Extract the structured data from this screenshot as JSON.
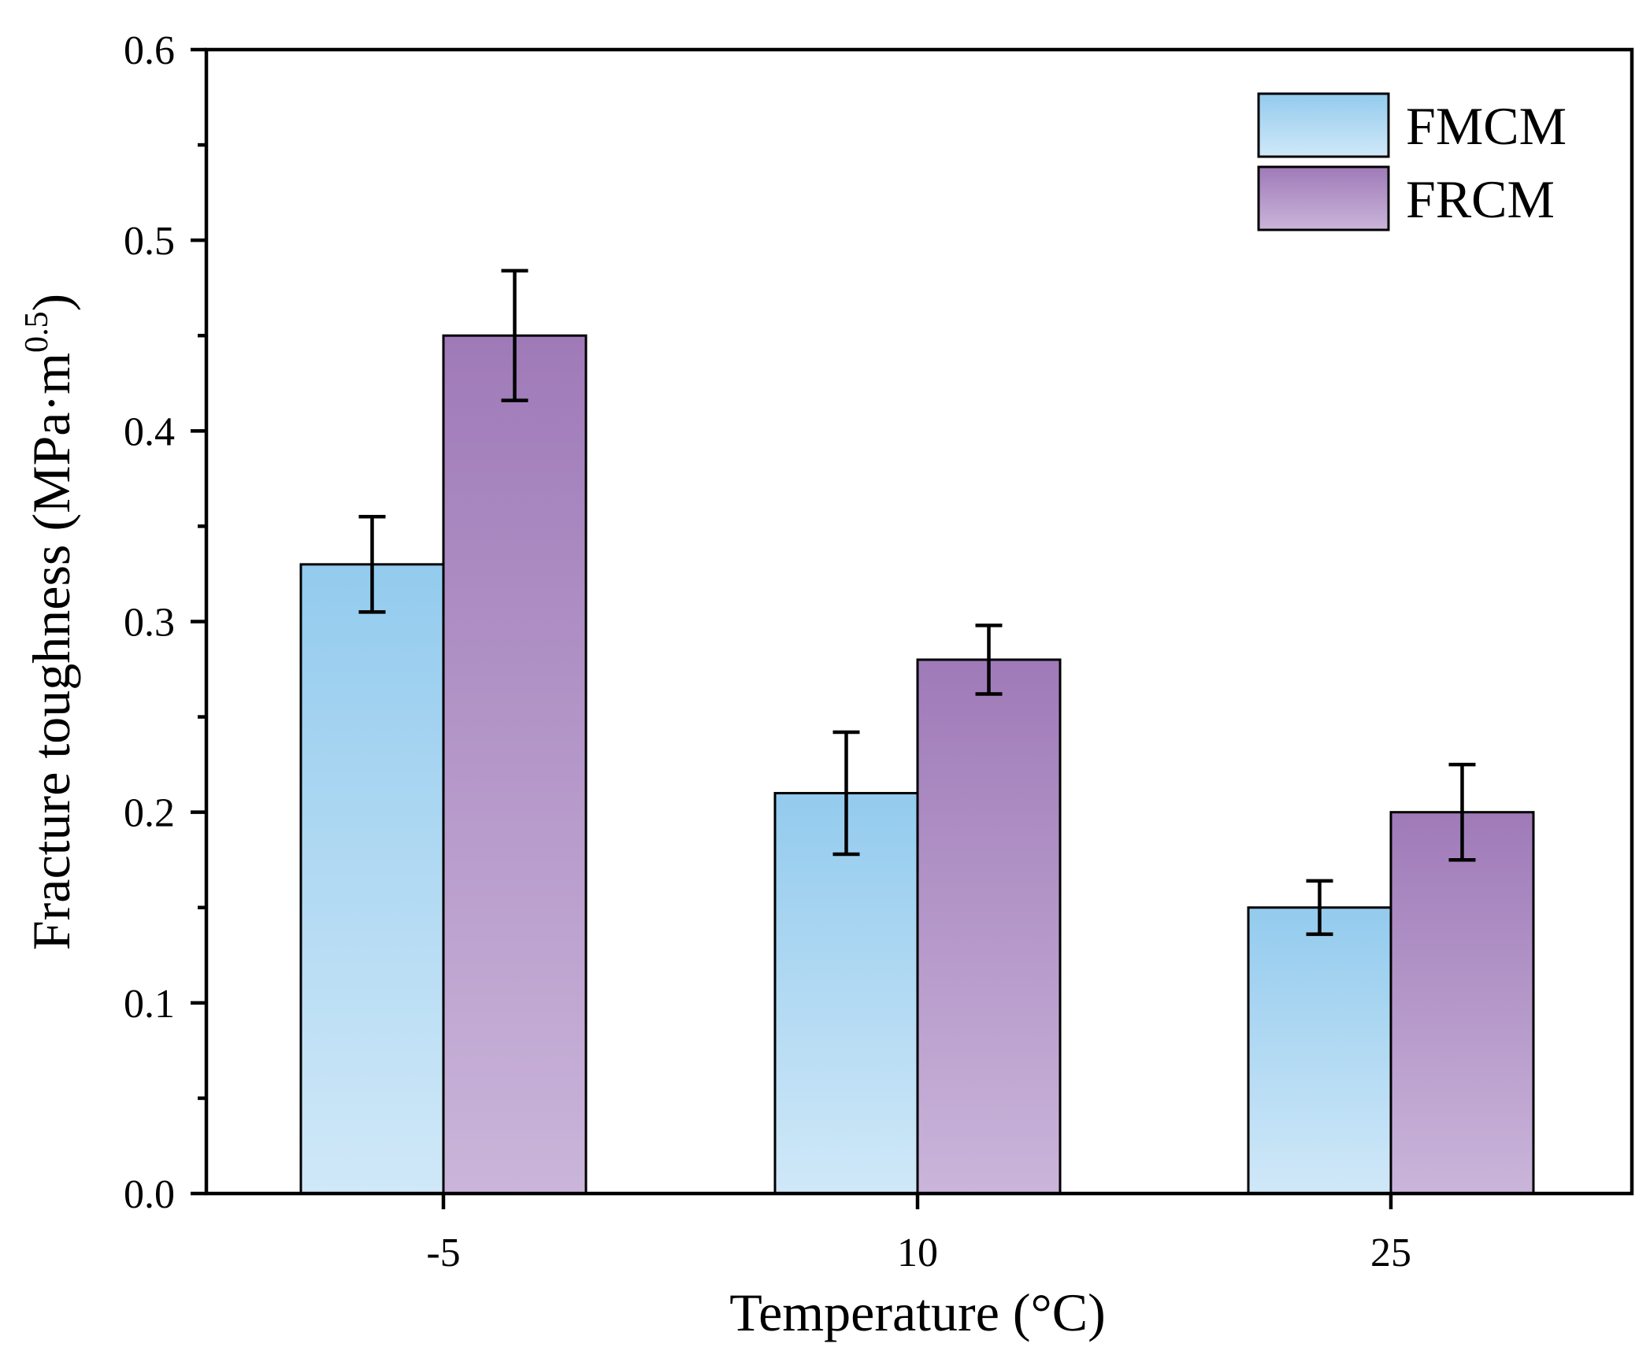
{
  "chart_data": {
    "type": "bar",
    "categories": [
      "-5",
      "10",
      "25"
    ],
    "series": [
      {
        "name": "FMCM",
        "values": [
          0.33,
          0.21,
          0.15
        ],
        "errors": [
          0.025,
          0.032,
          0.014
        ],
        "color_top": "#93cbee",
        "color_bottom": "#d0e8f8"
      },
      {
        "name": "FRCM",
        "values": [
          0.45,
          0.28,
          0.2
        ],
        "errors": [
          0.034,
          0.018,
          0.025
        ],
        "color_top": "#9f7ab8",
        "color_bottom": "#cab5da"
      }
    ],
    "xlabel": "Temperature (°C)",
    "ylabel_main": "Fracture toughness (MPa·m",
    "ylabel_sup": "0.5",
    "ylabel_end": ")",
    "ylim": [
      0.0,
      0.6
    ],
    "yticks": [
      "0.0",
      "0.1",
      "0.2",
      "0.3",
      "0.4",
      "0.5",
      "0.6"
    ],
    "legend_position": "top-right",
    "grid": false
  }
}
